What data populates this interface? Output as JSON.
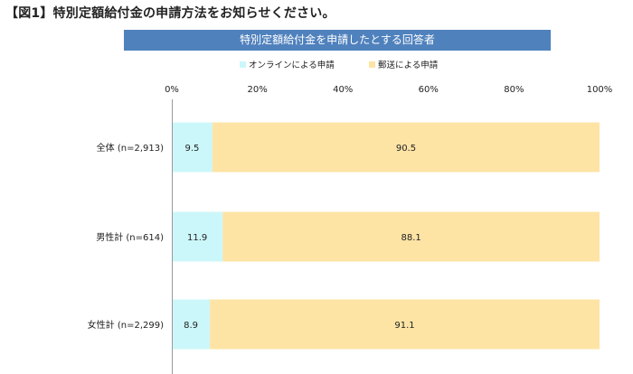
{
  "page": {
    "title": "【図1】特別定額給付金の申請方法をお知らせください。"
  },
  "chart_data": {
    "type": "bar",
    "orientation": "horizontal",
    "stacked": true,
    "percent_stacked": true,
    "title": "特別定額給付金を申請したとする回答者",
    "categories": [
      "全体 (n=2,913)",
      "男性計 (n=614)",
      "女性計 (n=2,299)"
    ],
    "series": [
      {
        "name": "オンラインによる申請",
        "color": "#ccf7fa",
        "values": [
          9.5,
          11.9,
          8.9
        ]
      },
      {
        "name": "郵送による申請",
        "color": "#fde4a5",
        "values": [
          90.5,
          88.1,
          91.1
        ]
      }
    ],
    "xlim": [
      0,
      100
    ],
    "xticks": [
      "0%",
      "20%",
      "40%",
      "60%",
      "80%",
      "100%"
    ],
    "legend_position": "top",
    "grid": false
  }
}
